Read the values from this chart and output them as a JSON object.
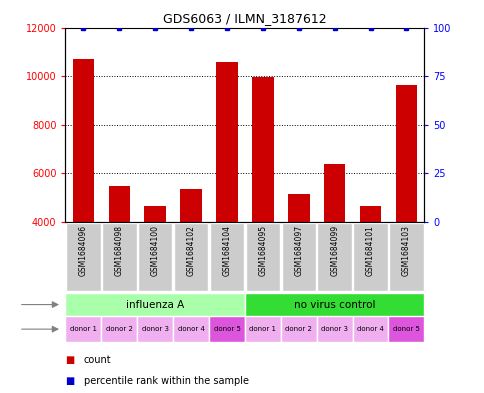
{
  "title": "GDS6063 / ILMN_3187612",
  "samples": [
    "GSM1684096",
    "GSM1684098",
    "GSM1684100",
    "GSM1684102",
    "GSM1684104",
    "GSM1684095",
    "GSM1684097",
    "GSM1684099",
    "GSM1684101",
    "GSM1684103"
  ],
  "counts": [
    10700,
    5500,
    4650,
    5350,
    10600,
    9950,
    5150,
    6400,
    4650,
    9650
  ],
  "percentiles": [
    100,
    100,
    100,
    100,
    100,
    100,
    100,
    100,
    100,
    100
  ],
  "ylim_left": [
    4000,
    12000
  ],
  "ylim_right": [
    0,
    100
  ],
  "yticks_left": [
    4000,
    6000,
    8000,
    10000,
    12000
  ],
  "yticks_right": [
    0,
    25,
    50,
    75,
    100
  ],
  "infection_groups": [
    {
      "label": "influenza A",
      "start": 0,
      "end": 5,
      "color": "#aaffaa"
    },
    {
      "label": "no virus control",
      "start": 5,
      "end": 10,
      "color": "#33dd33"
    }
  ],
  "donors": [
    "donor 1",
    "donor 2",
    "donor 3",
    "donor 4",
    "donor 5",
    "donor 1",
    "donor 2",
    "donor 3",
    "donor 4",
    "donor 5"
  ],
  "donor_colors": [
    "#f0b0f0",
    "#f0b0f0",
    "#f0b0f0",
    "#f0b0f0",
    "#dd55dd",
    "#f0b0f0",
    "#f0b0f0",
    "#f0b0f0",
    "#f0b0f0",
    "#dd55dd"
  ],
  "bar_color": "#cc0000",
  "percentile_color": "#0000cc",
  "sample_box_color": "#cccccc",
  "legend_count_color": "#cc0000",
  "legend_percentile_color": "#0000cc"
}
